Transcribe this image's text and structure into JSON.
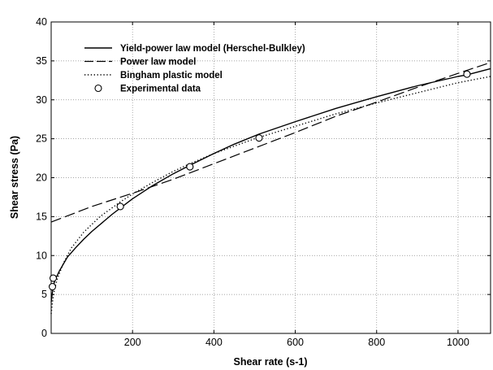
{
  "chart_data": {
    "type": "line",
    "title": "",
    "xlabel": "Shear rate (s-1)",
    "ylabel": "Shear stress (Pa)",
    "xlim": [
      0,
      1080
    ],
    "ylim": [
      0,
      40
    ],
    "x_ticks": [
      200,
      400,
      600,
      800,
      1000
    ],
    "x_tick_labels": [
      "200",
      "400",
      "600",
      "800",
      "1000"
    ],
    "y_ticks": [
      0,
      5,
      10,
      15,
      20,
      25,
      30,
      35,
      40
    ],
    "y_tick_labels": [
      "0",
      "5",
      "10",
      "15",
      "20",
      "25",
      "30",
      "35",
      "40"
    ],
    "grid": "dotted",
    "legend_position": "top-left",
    "series": [
      {
        "name": "Yield-power law model (Herschel-Bulkley)",
        "style": "solid",
        "x": [
          0,
          5,
          10,
          20,
          40,
          60,
          80,
          100,
          150,
          170,
          200,
          250,
          300,
          341,
          400,
          450,
          511,
          600,
          700,
          800,
          900,
          1000,
          1022,
          1080
        ],
        "y": [
          4.0,
          6.1,
          6.9,
          8.0,
          9.8,
          11.0,
          12.1,
          13.1,
          15.3,
          16.1,
          17.3,
          19.0,
          20.5,
          21.6,
          23.1,
          24.3,
          25.6,
          27.2,
          28.9,
          30.4,
          31.8,
          33.0,
          33.2,
          34.0
        ]
      },
      {
        "name": "Power law model",
        "style": "long-dash",
        "x": [
          0,
          100,
          200,
          300,
          400,
          500,
          600,
          700,
          800,
          900,
          1000,
          1080
        ],
        "y": [
          14.3,
          16.3,
          18.0,
          19.8,
          21.8,
          23.8,
          25.8,
          27.9,
          29.7,
          31.6,
          33.4,
          34.8
        ]
      },
      {
        "name": "Bingham plastic model",
        "style": "dotted",
        "x": [
          0,
          3,
          8,
          15,
          30,
          50,
          80,
          120,
          170,
          200,
          250,
          300,
          341,
          400,
          500,
          600,
          700,
          800,
          900,
          1000,
          1080
        ],
        "y": [
          2.5,
          4.0,
          5.6,
          7.0,
          9.0,
          11.0,
          13.0,
          15.0,
          16.9,
          17.9,
          19.4,
          20.8,
          21.8,
          23.1,
          25.0,
          26.6,
          28.2,
          29.6,
          30.9,
          32.2,
          33.0
        ]
      },
      {
        "name": "Experimental data",
        "style": "markers",
        "x": [
          3,
          5,
          170,
          341,
          511,
          1022
        ],
        "y": [
          6.0,
          7.1,
          16.3,
          21.4,
          25.1,
          33.3
        ]
      }
    ]
  }
}
